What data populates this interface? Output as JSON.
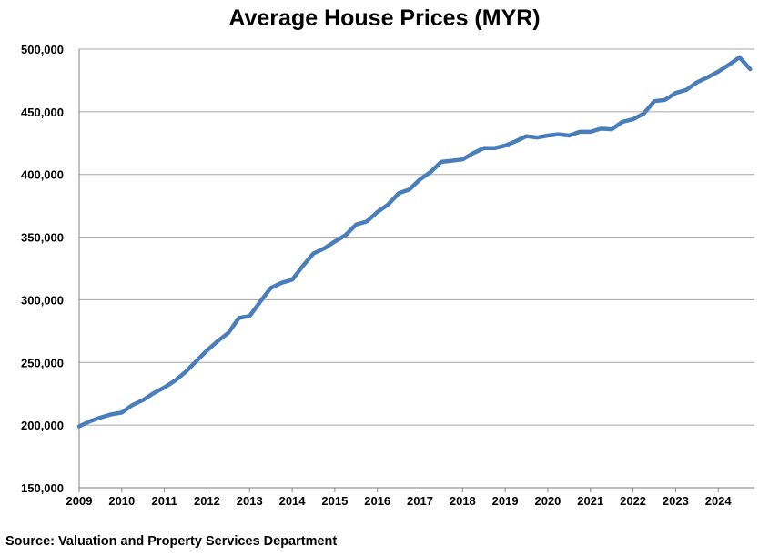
{
  "chart_data": {
    "type": "line",
    "title": "Average House Prices (MYR)",
    "xlabel": "",
    "ylabel": "",
    "ylim": [
      150000,
      500000
    ],
    "yticks": [
      150000,
      200000,
      250000,
      300000,
      350000,
      400000,
      450000,
      500000
    ],
    "ytick_labels": [
      "150,000",
      "200,000",
      "250,000",
      "300,000",
      "350,000",
      "400,000",
      "450,000",
      "500,000"
    ],
    "xlim": [
      2009,
      2024.85
    ],
    "xticks": [
      2009,
      2010,
      2011,
      2012,
      2013,
      2014,
      2015,
      2016,
      2017,
      2018,
      2019,
      2020,
      2021,
      2022,
      2023,
      2024
    ],
    "xtick_labels": [
      "2009",
      "2010",
      "2011",
      "2012",
      "2013",
      "2014",
      "2015",
      "2016",
      "2017",
      "2018",
      "2019",
      "2020",
      "2021",
      "2022",
      "2023",
      "2024"
    ],
    "grid": true,
    "legend": "none",
    "series": [
      {
        "color": "#4a7ebb",
        "x": [
          2009.0,
          2009.25,
          2009.5,
          2009.75,
          2010.0,
          2010.25,
          2010.5,
          2010.75,
          2011.0,
          2011.25,
          2011.5,
          2011.75,
          2012.0,
          2012.25,
          2012.5,
          2012.75,
          2013.0,
          2013.25,
          2013.5,
          2013.75,
          2014.0,
          2014.25,
          2014.5,
          2014.75,
          2015.0,
          2015.25,
          2015.5,
          2015.75,
          2016.0,
          2016.25,
          2016.5,
          2016.75,
          2017.0,
          2017.25,
          2017.5,
          2017.75,
          2018.0,
          2018.25,
          2018.5,
          2018.75,
          2019.0,
          2019.25,
          2019.5,
          2019.75,
          2020.0,
          2020.25,
          2020.5,
          2020.75,
          2021.0,
          2021.25,
          2021.5,
          2021.75,
          2022.0,
          2022.25,
          2022.5,
          2022.75,
          2023.0,
          2023.25,
          2023.5,
          2023.75,
          2024.0,
          2024.25,
          2024.5,
          2024.75
        ],
        "values": [
          199000,
          203000,
          206000,
          208500,
          210000,
          216000,
          220000,
          225500,
          230000,
          235500,
          242500,
          251000,
          259500,
          267000,
          273500,
          285500,
          287000,
          298500,
          309500,
          313500,
          316000,
          327000,
          337000,
          341000,
          346500,
          351500,
          360000,
          362500,
          370000,
          376000,
          385000,
          388000,
          396000,
          402000,
          410000,
          411000,
          412000,
          417000,
          421000,
          421000,
          423000,
          426500,
          430500,
          429500,
          431000,
          432000,
          431000,
          434000,
          434000,
          436500,
          436000,
          442000,
          444000,
          448500,
          458500,
          459500,
          465000,
          467500,
          473500,
          477500,
          482000,
          487500,
          493500,
          484000
        ]
      }
    ]
  },
  "source": "Source: Valuation and Property Services Department"
}
